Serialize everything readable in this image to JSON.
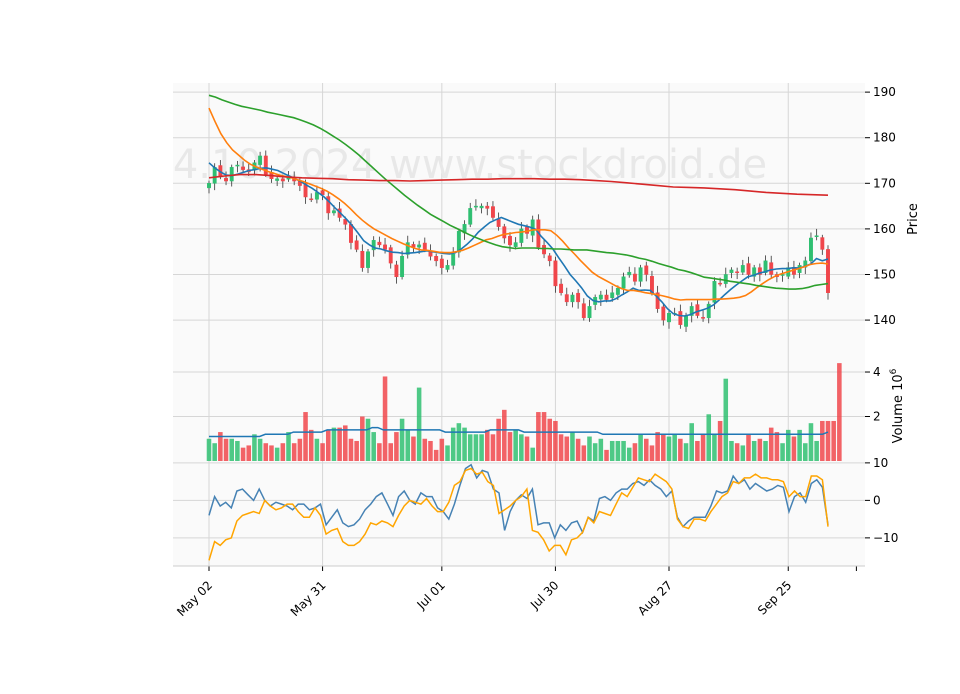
{
  "watermark": "4.10.2024 www.stockdroid.de",
  "chart_data": [
    {
      "panel": "price",
      "type": "candlestick",
      "ylabel": "Price",
      "ylim": [
        133,
        192
      ],
      "yticks": [
        140,
        150,
        160,
        170,
        180,
        190
      ],
      "xticks": [
        {
          "label": "May 02",
          "index": 0
        },
        {
          "label": "May 31",
          "index": 20
        },
        {
          "label": "Jul 01",
          "index": 41
        },
        {
          "label": "Jul 30",
          "index": 61
        },
        {
          "label": "Aug 27",
          "index": 81
        },
        {
          "label": "Sep 25",
          "index": 102
        }
      ],
      "grid": true,
      "up_color": "#2fbf71",
      "down_color": "#f0464b",
      "closes": [
        170,
        173.5,
        171.5,
        170.5,
        173.5,
        174,
        173,
        172.5,
        174.5,
        176,
        172,
        171,
        171,
        170.5,
        171.5,
        170.5,
        169.5,
        167,
        166.5,
        168,
        167.5,
        163.5,
        164,
        162.5,
        161,
        157,
        155.5,
        151.5,
        155,
        157.5,
        156.5,
        155.5,
        152.5,
        149.5,
        154,
        157,
        156,
        156.5,
        155.5,
        154,
        153,
        151.5,
        152,
        154.5,
        159.5,
        161,
        164.5,
        165,
        165,
        164.5,
        162.5,
        160.5,
        158,
        156.5,
        157,
        160,
        159,
        162,
        156,
        154.5,
        153,
        147.5,
        146,
        144,
        145.5,
        144,
        140.5,
        143,
        145,
        145.5,
        144.5,
        146,
        147,
        149.5,
        150.5,
        148.5,
        151.5,
        150,
        146,
        142.5,
        140,
        141.5,
        141.5,
        139,
        141,
        143,
        141,
        140.5,
        143.5,
        148.5,
        148,
        150,
        151,
        150.5,
        152,
        150,
        151.5,
        150,
        153,
        150,
        149.5,
        150,
        151.5,
        150,
        152,
        153,
        158,
        158.5,
        155.5,
        146
      ],
      "series": [
        {
          "name": "MA1",
          "color": "#1f77b4",
          "values": [
            174.5,
            173.4,
            172.5,
            171.8,
            171.7,
            172.0,
            172.4,
            172.8,
            173.0,
            173.3,
            173.4,
            173.1,
            172.8,
            172.2,
            171.6,
            171.0,
            170.4,
            169.6,
            168.9,
            168.0,
            167.1,
            165.9,
            164.6,
            163.4,
            162.1,
            160.7,
            159.1,
            157.4,
            156.5,
            155.8,
            155.6,
            155.2,
            154.9,
            154.8,
            154.6,
            154.7,
            154.8,
            155.0,
            155.2,
            155.0,
            154.8,
            154.6,
            154.5,
            154.8,
            155.6,
            156.6,
            157.8,
            159.3,
            160.4,
            161.4,
            162.0,
            162.5,
            162.0,
            161.5,
            161.0,
            160.7,
            160.4,
            159.9,
            158.3,
            157.0,
            155.6,
            153.7,
            151.9,
            150.0,
            148.6,
            147.1,
            145.3,
            144.3,
            144.0,
            144.2,
            144.2,
            144.7,
            145.5,
            146.2,
            147.0,
            146.5,
            146.6,
            146.5,
            145.3,
            144.0,
            142.5,
            141.4,
            141.0,
            140.9,
            141.2,
            141.8,
            142.2,
            142.6,
            143.3,
            144.4,
            145.6,
            146.7,
            147.7,
            148.6,
            149.5,
            149.8,
            150.3,
            150.6,
            151.0,
            151.2,
            151.3,
            151.3,
            151.5,
            151.4,
            151.8,
            152.3,
            153.5,
            153.0,
            153.4
          ]
        },
        {
          "name": "MA2",
          "color": "#ff7f0e",
          "values": [
            186.5,
            183.6,
            180.9,
            178.9,
            177.3,
            176.2,
            175.1,
            174.2,
            173.6,
            173.1,
            172.6,
            172.2,
            171.8,
            171.5,
            171.2,
            170.8,
            170.4,
            169.9,
            169.4,
            168.9,
            168.3,
            167.5,
            166.6,
            165.6,
            164.4,
            163.1,
            161.9,
            160.9,
            160.0,
            159.3,
            158.6,
            157.9,
            157.3,
            156.7,
            156.2,
            155.7,
            155.4,
            155.3,
            155.1,
            154.9,
            154.8,
            154.8,
            155.0,
            155.3,
            155.8,
            156.4,
            157.0,
            157.6,
            157.9,
            158.4,
            158.8,
            159.0,
            159.2,
            159.3,
            159.5,
            159.8,
            159.8,
            159.8,
            159.6,
            158.6,
            157.3,
            155.8,
            154.5,
            153.1,
            151.8,
            150.5,
            149.6,
            148.9,
            148.2,
            147.5,
            146.9,
            146.5,
            146.5,
            146.3,
            146.0,
            145.8,
            145.6,
            145.3,
            145.0,
            144.6,
            144.4,
            144.5,
            144.5,
            144.5,
            144.5,
            144.5,
            144.6,
            144.6,
            144.7,
            144.8,
            145.0,
            145.4,
            146.2,
            147.2,
            148.1,
            148.9,
            149.6,
            150.1,
            150.5,
            150.9,
            151.3,
            151.7,
            152.2,
            152.4,
            152.5,
            152.3
          ]
        },
        {
          "name": "MA3",
          "color": "#2ca02c",
          "values": [
            189.3,
            188.9,
            188.3,
            187.8,
            187.3,
            186.9,
            186.6,
            186.3,
            186.0,
            185.6,
            185.3,
            185.0,
            184.7,
            184.4,
            183.9,
            183.4,
            182.8,
            182.1,
            181.3,
            180.4,
            179.5,
            178.5,
            177.4,
            176.2,
            174.9,
            173.6,
            172.3,
            171.0,
            169.8,
            168.6,
            167.4,
            166.3,
            165.2,
            164.2,
            163.2,
            162.4,
            161.6,
            160.8,
            160.1,
            159.4,
            158.7,
            158.1,
            157.5,
            157.0,
            156.5,
            156.1,
            155.9,
            155.7,
            155.8,
            155.8,
            155.8,
            155.7,
            155.7,
            155.6,
            155.6,
            155.5,
            155.4,
            155.4,
            155.4,
            155.2,
            155.0,
            154.8,
            154.7,
            154.5,
            154.3,
            154.0,
            153.6,
            153.3,
            152.9,
            152.4,
            152.0,
            151.6,
            151.1,
            150.8,
            150.4,
            149.9,
            149.4,
            149.2,
            149.0,
            148.8,
            148.5,
            148.3,
            148.1,
            147.9,
            147.6,
            147.4,
            147.2,
            147.0,
            146.9,
            146.8,
            146.8,
            146.9,
            147.2,
            147.6,
            147.8,
            148.0
          ]
        },
        {
          "name": "MA4",
          "color": "#d62728",
          "values": [
            171.2,
            171.6,
            171.9,
            171.9,
            171.7,
            171.4,
            171.2,
            171.1,
            171.0,
            170.8,
            170.7,
            170.6,
            170.6,
            170.5,
            170.6,
            170.7,
            170.8,
            170.9,
            170.9,
            171.0,
            171.0,
            171.0,
            170.9,
            170.9,
            170.8,
            170.6,
            170.4,
            170.1,
            169.8,
            169.5,
            169.2,
            169.1,
            169.0,
            168.8,
            168.6,
            168.3,
            168.0,
            167.8,
            167.6,
            167.5,
            167.4
          ]
        }
      ]
    },
    {
      "panel": "volume",
      "type": "bar",
      "ylabel": "Volume  10",
      "ylabel_exponent": "6",
      "ylim": [
        0,
        4.9
      ],
      "yticks": [
        2,
        4
      ],
      "values": [
        1.0,
        0.8,
        1.3,
        1.0,
        1.0,
        0.9,
        0.6,
        0.7,
        1.2,
        1.0,
        0.8,
        0.7,
        0.6,
        0.8,
        1.3,
        0.8,
        1.0,
        2.2,
        1.4,
        1.0,
        0.8,
        1.4,
        1.5,
        1.5,
        1.6,
        1.0,
        0.9,
        2.0,
        1.9,
        1.3,
        0.8,
        3.8,
        0.8,
        1.3,
        1.9,
        1.4,
        1.1,
        3.3,
        1.0,
        0.9,
        0.5,
        1.0,
        0.7,
        1.5,
        1.7,
        1.5,
        1.2,
        1.2,
        1.2,
        1.4,
        1.2,
        1.9,
        2.3,
        1.3,
        1.4,
        1.2,
        1.1,
        0.6,
        2.2,
        2.2,
        1.9,
        1.8,
        1.2,
        1.1,
        1.3,
        1.0,
        0.7,
        1.1,
        0.8,
        1.0,
        0.5,
        0.9,
        0.9,
        0.9,
        0.6,
        0.8,
        1.2,
        1.0,
        0.7,
        1.3,
        1.2,
        1.1,
        1.2,
        1.0,
        0.8,
        1.7,
        0.9,
        1.2,
        2.1,
        1.2,
        1.8,
        3.7,
        0.9,
        0.8,
        0.7,
        1.2,
        0.9,
        1.0,
        0.9,
        1.5,
        1.3,
        0.8,
        1.4,
        1.1,
        1.4,
        0.8,
        1.7,
        0.9,
        1.8,
        1.8,
        1.8,
        4.4
      ],
      "avg": {
        "color": "#1f77b4",
        "values": [
          1.1,
          1.1,
          1.1,
          1.1,
          1.1,
          1.1,
          1.1,
          1.1,
          1.1,
          1.1,
          1.2,
          1.2,
          1.2,
          1.2,
          1.2,
          1.3,
          1.3,
          1.3,
          1.3,
          1.3,
          1.3,
          1.4,
          1.4,
          1.4,
          1.4,
          1.4,
          1.4,
          1.4,
          1.4,
          1.5,
          1.5,
          1.4,
          1.4,
          1.4,
          1.4,
          1.4,
          1.4,
          1.4,
          1.4,
          1.4,
          1.4,
          1.4,
          1.3,
          1.3,
          1.3,
          1.3,
          1.3,
          1.3,
          1.3,
          1.3,
          1.4,
          1.4,
          1.4,
          1.4,
          1.4,
          1.4,
          1.3,
          1.3,
          1.3,
          1.3,
          1.3,
          1.3,
          1.3,
          1.3,
          1.3,
          1.3,
          1.3,
          1.3,
          1.3,
          1.3,
          1.2,
          1.2,
          1.2,
          1.2,
          1.2,
          1.2,
          1.2,
          1.2,
          1.2,
          1.2,
          1.2,
          1.2,
          1.2,
          1.2,
          1.2,
          1.2,
          1.2,
          1.2,
          1.2,
          1.2,
          1.2,
          1.2,
          1.2,
          1.2,
          1.2,
          1.2,
          1.2,
          1.2,
          1.2,
          1.2,
          1.2,
          1.2,
          1.2,
          1.2,
          1.2,
          1.2,
          1.2,
          1.2,
          1.2,
          1.2,
          1.3
        ]
      }
    },
    {
      "panel": "oscillator",
      "type": "line",
      "ylim": [
        -17.5,
        10.5
      ],
      "yticks": [
        10,
        0,
        -10
      ],
      "series": [
        {
          "name": "",
          "color": "#4682b4",
          "values": [
            -4,
            1,
            -1.5,
            -0.5,
            -2,
            2.5,
            3,
            1.5,
            0,
            3,
            0,
            -1.5,
            -0.5,
            -1,
            -1.5,
            -2.5,
            -1,
            -1,
            -2.5,
            -2,
            -1,
            -6.5,
            -4.5,
            -2.5,
            -6,
            -7,
            -6.5,
            -5,
            -2.5,
            -1,
            1,
            2,
            -1,
            -4,
            1,
            2.5,
            0,
            -1,
            2,
            1,
            1,
            -2,
            -3,
            -5,
            -1,
            4,
            8.5,
            9.5,
            6,
            8,
            7.5,
            3,
            2,
            -8,
            -3,
            0,
            1.5,
            0.5,
            3,
            -6.5,
            -6,
            -6,
            -10,
            -6.5,
            -8,
            -6,
            -5.5,
            -8.5,
            -4.5,
            -5.5,
            0.5,
            1,
            0,
            2,
            3,
            3,
            4.5,
            5,
            4,
            5.5,
            4,
            3,
            1,
            2.5,
            -4.5,
            -7,
            -5.5,
            -4.5,
            -4.5,
            -4.5,
            -1.5,
            2.5,
            2,
            2.5,
            6.5,
            4.5,
            5.5,
            3,
            4.5,
            3.5,
            2.5,
            3,
            4,
            3.5,
            -3,
            1,
            2,
            -0.5,
            4.5,
            5.5,
            3.5,
            -6.5
          ]
        },
        {
          "name": "",
          "color": "#ffa500",
          "values": [
            -16,
            -11,
            -12,
            -10.5,
            -10,
            -5.5,
            -4,
            -3.5,
            -3,
            -3.5,
            0,
            -1.5,
            -2.5,
            -2,
            -1,
            -1,
            -3,
            -4.5,
            -4.5,
            -2,
            -4,
            -9,
            -8,
            -7.5,
            -11,
            -12,
            -12,
            -11,
            -9,
            -6,
            -6.5,
            -5.5,
            -6,
            -7,
            -4,
            -1.5,
            0,
            -0.5,
            -1,
            0.5,
            -1.5,
            -3,
            -3,
            -0.5,
            4,
            5,
            8,
            8.5,
            7,
            7.5,
            5,
            4,
            -3.5,
            -2.5,
            -1.5,
            0,
            1,
            3,
            -8,
            -8.5,
            -10.5,
            -13.5,
            -12,
            -12,
            -14.5,
            -10.5,
            -10,
            -8.5,
            -4.5,
            -6,
            -3,
            -3.5,
            -4,
            -1,
            2,
            1,
            3.5,
            6,
            5.5,
            5,
            7,
            6,
            5,
            3,
            -5,
            -7,
            -7.5,
            -5,
            -5,
            -5.5,
            -3,
            -1,
            1,
            2,
            5,
            4.5,
            6,
            6,
            7,
            6,
            6,
            5.5,
            5.5,
            5,
            1,
            2.5,
            1,
            1,
            6.5,
            6.5,
            5.5,
            -7
          ]
        }
      ]
    }
  ]
}
